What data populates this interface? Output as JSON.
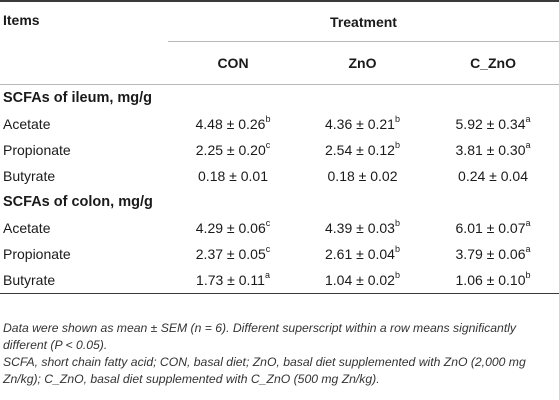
{
  "table": {
    "items_header": "Items",
    "treatment_header": "Treatment",
    "columns": [
      "CON",
      "ZnO",
      "C_ZnO"
    ],
    "sections": [
      {
        "title": "SCFAs of ileum, mg/g",
        "rows": [
          {
            "label": "Acetate",
            "cells": [
              {
                "value": "4.48 ± 0.26",
                "sup": "b"
              },
              {
                "value": "4.36 ± 0.21",
                "sup": "b"
              },
              {
                "value": "5.92 ± 0.34",
                "sup": "a"
              }
            ]
          },
          {
            "label": "Propionate",
            "cells": [
              {
                "value": "2.25 ± 0.20",
                "sup": "c"
              },
              {
                "value": "2.54 ± 0.12",
                "sup": "b"
              },
              {
                "value": "3.81 ± 0.30",
                "sup": "a"
              }
            ]
          },
          {
            "label": "Butyrate",
            "cells": [
              {
                "value": "0.18 ± 0.01",
                "sup": ""
              },
              {
                "value": "0.18 ± 0.02",
                "sup": ""
              },
              {
                "value": "0.24 ± 0.04",
                "sup": ""
              }
            ]
          }
        ]
      },
      {
        "title": "SCFAs of colon, mg/g",
        "rows": [
          {
            "label": "Acetate",
            "cells": [
              {
                "value": "4.29 ± 0.06",
                "sup": "c"
              },
              {
                "value": "4.39 ± 0.03",
                "sup": "b"
              },
              {
                "value": "6.01 ± 0.07",
                "sup": "a"
              }
            ]
          },
          {
            "label": "Propionate",
            "cells": [
              {
                "value": "2.37 ± 0.05",
                "sup": "c"
              },
              {
                "value": "2.61 ± 0.04",
                "sup": "b"
              },
              {
                "value": "3.79 ± 0.06",
                "sup": "a"
              }
            ]
          },
          {
            "label": "Butyrate",
            "cells": [
              {
                "value": "1.73 ± 0.11",
                "sup": "a"
              },
              {
                "value": "1.04 ± 0.02",
                "sup": "b"
              },
              {
                "value": "1.06 ± 0.10",
                "sup": "b"
              }
            ]
          }
        ]
      }
    ]
  },
  "notes": {
    "line1": "Data were shown as mean ± SEM (n = 6). Different superscript within a row means significantly different (P < 0.05).",
    "line2": "SCFA, short chain fatty acid; CON, basal diet; ZnO, basal diet supplemented with ZnO (2,000 mg Zn/kg); C_ZnO, basal diet supplemented with C_ZnO (500 mg Zn/kg)."
  }
}
